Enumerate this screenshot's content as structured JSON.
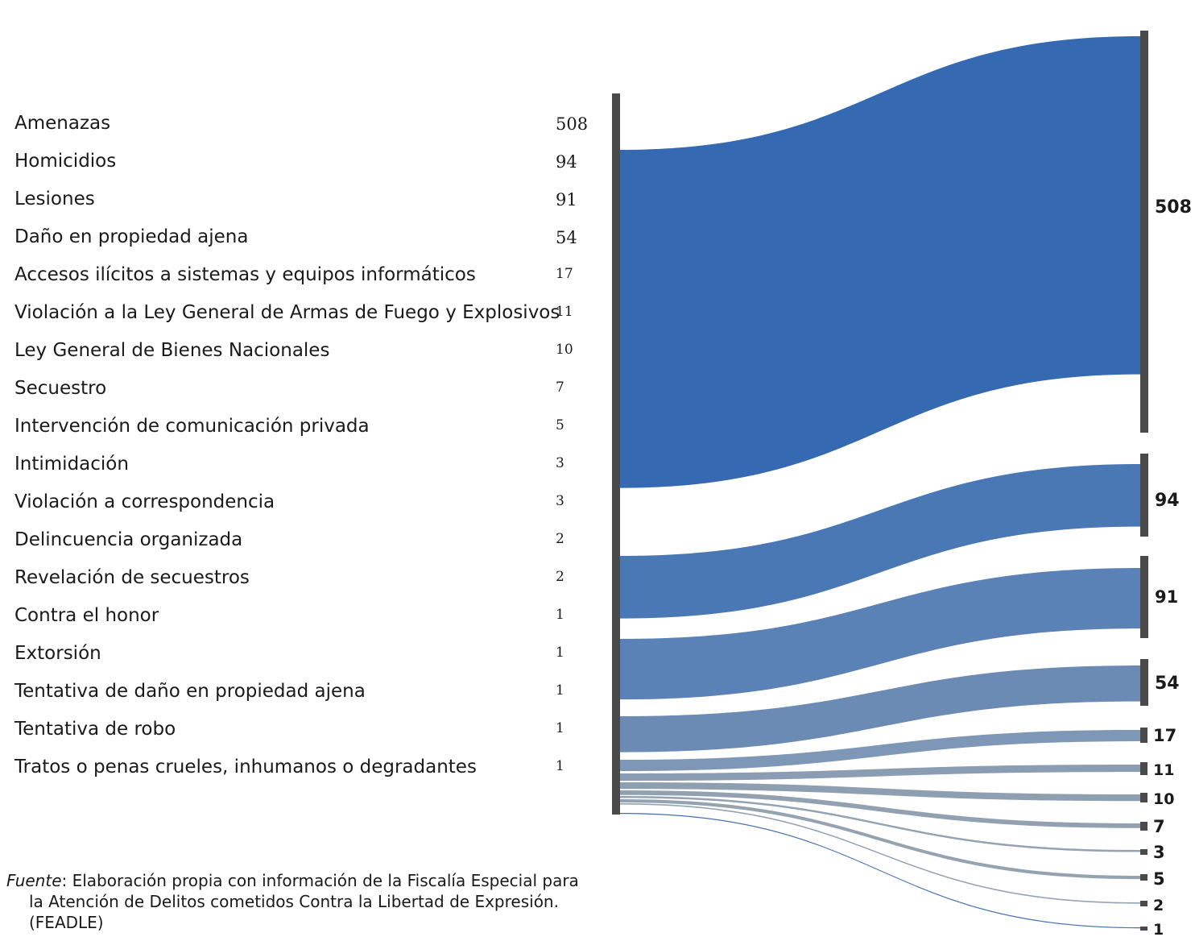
{
  "chart_data": {
    "type": "sankey",
    "categories": [
      "Amenazas",
      "Homicidios",
      "Lesiones",
      "Daño en propiedad ajena",
      "Accesos ilícitos a sistemas y equipos informáticos",
      "Violación a la Ley General de Armas de Fuego y Explosivos",
      "Ley General de Bienes Nacionales",
      "Secuestro",
      "Intervención de comunicación privada",
      "Intimidación",
      "Violación a correspondencia",
      "Delincuencia organizada",
      "Revelación de secuestros",
      "Contra el honor",
      "Extorsión",
      "Tentativa de daño en propiedad ajena",
      "Tentativa de robo",
      "Tratos o penas crueles, inhumanos o degradantes"
    ],
    "values": [
      508,
      94,
      91,
      54,
      17,
      11,
      10,
      7,
      5,
      3,
      3,
      2,
      2,
      1,
      1,
      1,
      1,
      1
    ],
    "target_labels": [
      "508",
      "94",
      "91",
      "54",
      "17",
      "11",
      "10",
      "7",
      "3",
      "5",
      "2",
      "1"
    ],
    "target_values": [
      508,
      94,
      91,
      54,
      17,
      11,
      10,
      7,
      3,
      5,
      2,
      1
    ],
    "colors": [
      "#3569b1",
      "#4a78b4",
      "#5a82b6",
      "#6b8bb5",
      "#7f97b6",
      "#8b9db3",
      "#8f9fb2",
      "#92a1b2",
      "#94a2b1",
      "#95a3b1",
      "#96a3b1",
      "#4470b0"
    ],
    "node_bar_color": "#4a4a4a"
  },
  "source": {
    "prefix": "Fuente",
    "line1": ": Elaboración propia con información de la Fiscalía Especial para",
    "line2": "la Atención de Delitos cometidos Contra la Libertad de Expresión.",
    "line3": "(FEADLE)"
  }
}
